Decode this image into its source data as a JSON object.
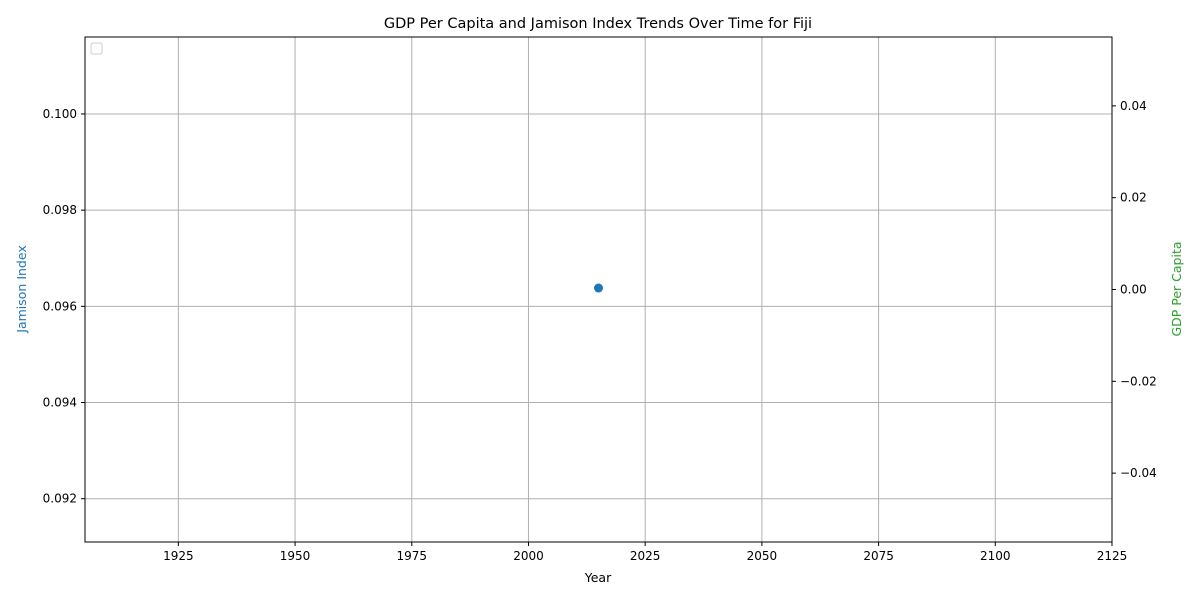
{
  "chart_data": {
    "type": "scatter",
    "title": "GDP Per Capita and Jamison Index Trends Over Time for Fiji",
    "xlabel": "Year",
    "ylabel_left": "Jamison Index",
    "ylabel_right": "GDP Per Capita",
    "xlim": [
      1905,
      2125
    ],
    "ylim_left": [
      0.0911,
      0.1016
    ],
    "ylim_right": [
      -0.055,
      0.055
    ],
    "x_ticks": [
      1925,
      1950,
      1975,
      2000,
      2025,
      2050,
      2075,
      2100,
      2125
    ],
    "y_left_ticks": [
      0.092,
      0.094,
      0.096,
      0.098,
      0.1
    ],
    "y_right_ticks": [
      -0.04,
      -0.02,
      0.0,
      0.02,
      0.04
    ],
    "grid": true,
    "legend": {
      "placement": "top-left",
      "entries": []
    },
    "series": [
      {
        "axis": "left",
        "color": "#1f77b4",
        "points": [
          {
            "x": 2015,
            "y": 0.09638
          }
        ]
      }
    ],
    "colors": {
      "left_axis_label": "#1f77b4",
      "right_axis_label": "#2ca02c",
      "grid": "#b0b0b0"
    }
  }
}
